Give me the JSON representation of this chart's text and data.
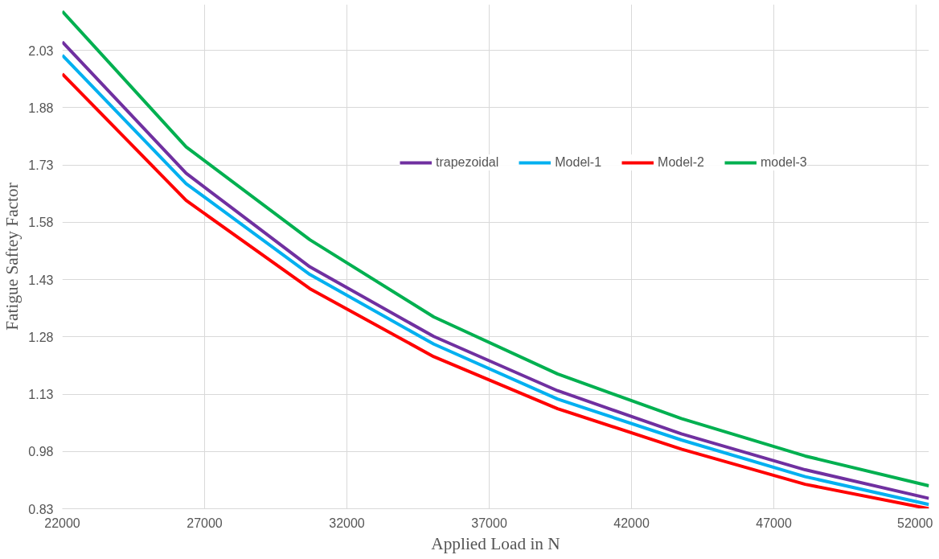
{
  "chart_data": {
    "type": "line",
    "xlabel": "Applied Load in N",
    "ylabel": "Fatigue Saftey Factor",
    "x": [
      22000,
      26350,
      30700,
      35050,
      39400,
      43750,
      48100,
      52450
    ],
    "series": [
      {
        "name": "trapezoidal",
        "color": "#7030a0",
        "values": [
          2.052,
          1.708,
          1.463,
          1.281,
          1.139,
          1.026,
          0.932,
          0.857
        ]
      },
      {
        "name": "Model-1",
        "color": "#00b0f0",
        "values": [
          2.017,
          1.681,
          1.443,
          1.261,
          1.117,
          1.01,
          0.914,
          0.841
        ]
      },
      {
        "name": "Model-2",
        "color": "#ff0000",
        "values": [
          1.968,
          1.637,
          1.406,
          1.228,
          1.092,
          0.986,
          0.894,
          0.83
        ]
      },
      {
        "name": "model-3",
        "color": "#00b050",
        "values": [
          2.132,
          1.777,
          1.534,
          1.332,
          1.183,
          1.066,
          0.968,
          0.89
        ]
      }
    ],
    "xlim": [
      22000,
      52450
    ],
    "xticks": [
      22000,
      27000,
      32000,
      37000,
      42000,
      47000,
      52000
    ],
    "ylim": [
      0.83,
      2.15
    ],
    "yticks": [
      0.83,
      0.98,
      1.13,
      1.28,
      1.43,
      1.58,
      1.73,
      1.88,
      2.03
    ],
    "grid": true,
    "legend": "top right",
    "marker": "none",
    "line_style": "solid"
  }
}
